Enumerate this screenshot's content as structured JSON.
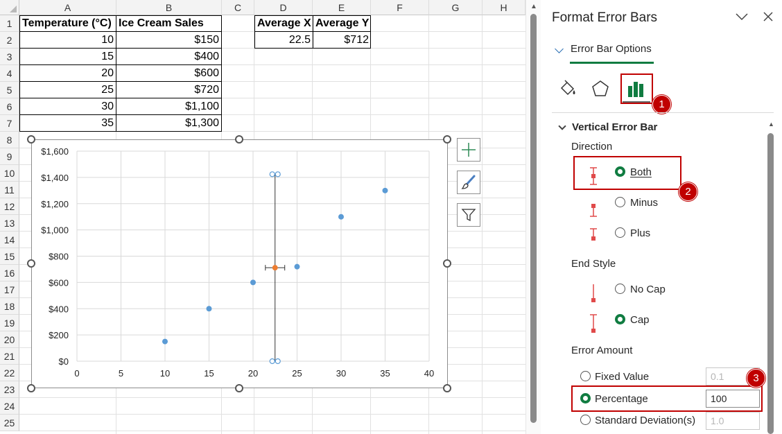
{
  "sheet": {
    "columns": [
      "A",
      "B",
      "C",
      "D",
      "E",
      "F",
      "G",
      "H"
    ],
    "rows": [
      "1",
      "2",
      "3",
      "4",
      "5",
      "6",
      "7",
      "8",
      "9",
      "10",
      "11",
      "12",
      "13",
      "14",
      "15",
      "16",
      "17",
      "18",
      "19",
      "20",
      "21",
      "22",
      "23",
      "24",
      "25"
    ],
    "table": {
      "headers": [
        "Temperature (°C)",
        "Ice Cream Sales"
      ],
      "rows": [
        {
          "temp": "10",
          "sales": "$150"
        },
        {
          "temp": "15",
          "sales": "$400"
        },
        {
          "temp": "20",
          "sales": "$600"
        },
        {
          "temp": "25",
          "sales": "$720"
        },
        {
          "temp": "30",
          "sales": "$1,100"
        },
        {
          "temp": "35",
          "sales": "$1,300"
        }
      ]
    },
    "averages": {
      "headers": [
        "Average X",
        "Average Y"
      ],
      "values": [
        "22.5",
        "$712"
      ]
    }
  },
  "chart_data": {
    "type": "scatter",
    "xlim": [
      0,
      40
    ],
    "ylim": [
      0,
      1600
    ],
    "x_ticks": [
      "0",
      "5",
      "10",
      "15",
      "20",
      "25",
      "30",
      "35",
      "40"
    ],
    "y_ticks": [
      "$0",
      "$200",
      "$400",
      "$600",
      "$800",
      "$1,000",
      "$1,200",
      "$1,400",
      "$1,600"
    ],
    "grid": true,
    "series": [
      {
        "x": [
          10,
          15,
          20,
          25,
          30,
          35
        ],
        "y": [
          150,
          400,
          600,
          720,
          1100,
          1300
        ],
        "color": "#5b9bd5"
      },
      {
        "x": [
          22.5
        ],
        "y": [
          712
        ],
        "color": "#ed7d31",
        "error_x": {
          "minus": 1.1,
          "plus": 1.1
        },
        "error_y": {
          "minus": 712,
          "plus": 712
        }
      }
    ]
  },
  "pane": {
    "title": "Format Error Bars",
    "tab_label": "Error Bar Options",
    "section": "Vertical Error Bar",
    "direction_label": "Direction",
    "direction_options": [
      "Both",
      "Minus",
      "Plus"
    ],
    "end_style_label": "End Style",
    "end_style_options": [
      "No Cap",
      "Cap"
    ],
    "error_amount_label": "Error Amount",
    "error_amount_options": [
      "Fixed Value",
      "Percentage",
      "Standard Deviation(s)"
    ],
    "fixed_value": "0.1",
    "percentage_value": "100",
    "stddev_value": "1.0",
    "badges": [
      "1",
      "2",
      "3"
    ],
    "colors": {
      "accent": "#107c41",
      "highlight": "#c00000"
    }
  }
}
